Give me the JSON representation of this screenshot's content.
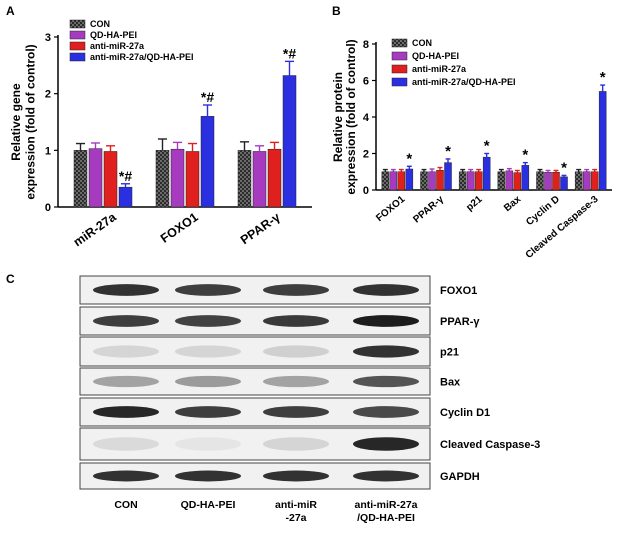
{
  "colors": {
    "con": "#3a3a3a",
    "qd_ha_pei": "#a73bc0",
    "anti_mir_27a": "#e0201e",
    "combo": "#2a2fe0",
    "axis": "#000000"
  },
  "chart_data": [
    {
      "panel": "A",
      "type": "bar",
      "ylabel": "Relative gene expression (fold of control)",
      "ylim": [
        0,
        3
      ],
      "yticks": [
        0,
        1,
        2,
        3
      ],
      "categories": [
        "miR-27a",
        "FOXO1",
        "PPAR-γ"
      ],
      "series": [
        {
          "name": "CON",
          "color": "#3a3a3a",
          "pattern": "check",
          "values": [
            1.0,
            1.0,
            1.0
          ],
          "errors": [
            0.12,
            0.2,
            0.15
          ]
        },
        {
          "name": "QD-HA-PEI",
          "color": "#a73bc0",
          "values": [
            1.03,
            1.02,
            0.98
          ],
          "errors": [
            0.1,
            0.12,
            0.1
          ]
        },
        {
          "name": "anti-miR-27a",
          "color": "#e0201e",
          "values": [
            0.98,
            0.98,
            1.02
          ],
          "errors": [
            0.1,
            0.14,
            0.12
          ]
        },
        {
          "name": "anti-miR-27a/QD-HA-PEI",
          "color": "#2a2fe0",
          "values": [
            0.35,
            1.6,
            2.32
          ],
          "errors": [
            0.06,
            0.2,
            0.25
          ]
        }
      ],
      "annotations": [
        "*#",
        "*#",
        "*#"
      ],
      "legend": "top-left"
    },
    {
      "panel": "B",
      "type": "bar",
      "ylabel": "Relative protein expression (fold of control)",
      "ylim": [
        0,
        8
      ],
      "yticks": [
        0,
        2,
        4,
        6,
        8
      ],
      "categories": [
        "FOXO1",
        "PPAR-γ",
        "p21",
        "Bax",
        "Cyclin D",
        "Cleaved Caspase-3"
      ],
      "series": [
        {
          "name": "CON",
          "color": "#3a3a3a",
          "pattern": "check",
          "values": [
            1.0,
            1.0,
            1.0,
            1.0,
            1.0,
            1.0
          ],
          "errors": [
            0.12,
            0.12,
            0.12,
            0.12,
            0.12,
            0.12
          ]
        },
        {
          "name": "QD-HA-PEI",
          "color": "#a73bc0",
          "values": [
            1.0,
            1.0,
            1.0,
            1.05,
            0.97,
            1.0
          ],
          "errors": [
            0.12,
            0.15,
            0.12,
            0.12,
            0.1,
            0.12
          ]
        },
        {
          "name": "anti-miR-27a",
          "color": "#e0201e",
          "values": [
            1.0,
            1.08,
            1.0,
            0.95,
            0.97,
            1.0
          ],
          "errors": [
            0.12,
            0.15,
            0.12,
            0.12,
            0.1,
            0.12
          ]
        },
        {
          "name": "anti-miR-27a/QD-HA-PEI",
          "color": "#2a2fe0",
          "values": [
            1.15,
            1.5,
            1.8,
            1.35,
            0.72,
            5.4
          ],
          "errors": [
            0.15,
            0.2,
            0.2,
            0.15,
            0.08,
            0.35
          ]
        }
      ],
      "annotations": [
        "*",
        "*",
        "*",
        "*",
        "*",
        "*"
      ],
      "legend": "top-left"
    }
  ],
  "blot": {
    "panel": "C",
    "proteins": [
      "FOXO1",
      "PPAR-γ",
      "p21",
      "Bax",
      "Cyclin D1",
      "Cleaved Caspase-3",
      "GAPDH"
    ],
    "lanes": [
      [
        "CON"
      ],
      [
        "QD-HA-PEI"
      ],
      [
        "anti-miR",
        "-27a"
      ],
      [
        "anti-miR-27a",
        "/QD-HA-PEI"
      ]
    ],
    "intensity": [
      [
        0.85,
        0.8,
        0.8,
        0.85
      ],
      [
        0.8,
        0.78,
        0.82,
        0.95
      ],
      [
        0.12,
        0.12,
        0.15,
        0.85
      ],
      [
        0.35,
        0.38,
        0.35,
        0.7
      ],
      [
        0.9,
        0.8,
        0.8,
        0.75
      ],
      [
        0.1,
        0.05,
        0.12,
        0.9
      ],
      [
        0.85,
        0.85,
        0.85,
        0.85
      ]
    ]
  }
}
